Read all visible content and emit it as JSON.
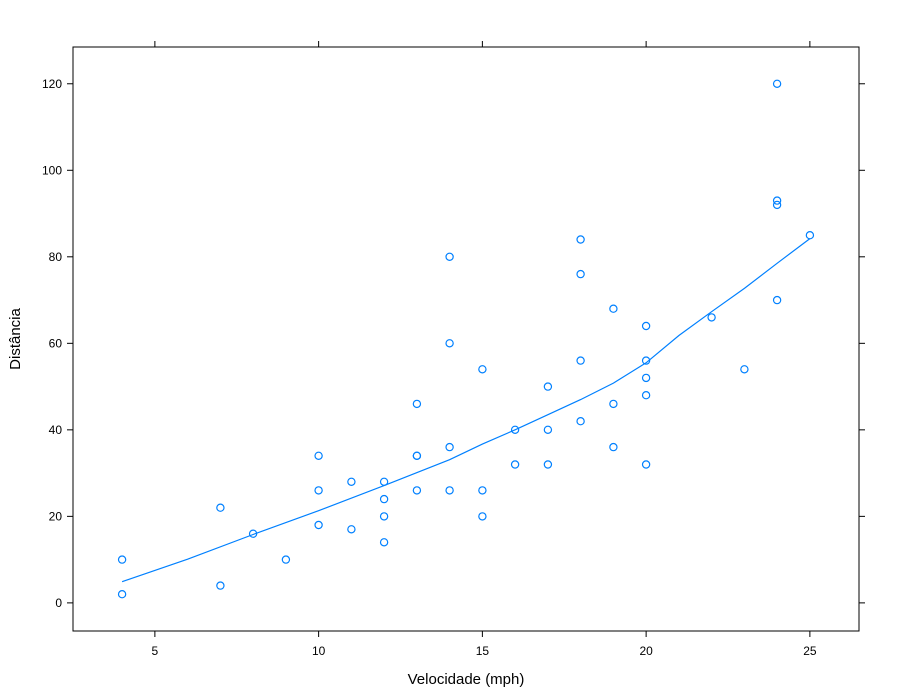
{
  "chart_data": {
    "type": "scatter",
    "title": "",
    "xlabel": "Velocidade (mph)",
    "ylabel": "Distância",
    "xlim": [
      2.5,
      26.5
    ],
    "ylim": [
      -6.5,
      128.5
    ],
    "x_ticks": [
      5,
      10,
      15,
      20,
      25
    ],
    "y_ticks": [
      0,
      20,
      40,
      60,
      80,
      100,
      120
    ],
    "grid": false,
    "legend": "none",
    "colors": {
      "points": "#0080ff",
      "line": "#0080ff",
      "frame": "#000000"
    },
    "points": [
      [
        4,
        2
      ],
      [
        4,
        10
      ],
      [
        7,
        4
      ],
      [
        7,
        22
      ],
      [
        8,
        16
      ],
      [
        9,
        10
      ],
      [
        10,
        18
      ],
      [
        10,
        26
      ],
      [
        10,
        34
      ],
      [
        11,
        17
      ],
      [
        11,
        28
      ],
      [
        12,
        14
      ],
      [
        12,
        20
      ],
      [
        12,
        24
      ],
      [
        12,
        28
      ],
      [
        13,
        26
      ],
      [
        13,
        34
      ],
      [
        13,
        34
      ],
      [
        13,
        46
      ],
      [
        14,
        26
      ],
      [
        14,
        36
      ],
      [
        14,
        60
      ],
      [
        14,
        80
      ],
      [
        15,
        20
      ],
      [
        15,
        26
      ],
      [
        15,
        54
      ],
      [
        16,
        32
      ],
      [
        16,
        40
      ],
      [
        17,
        32
      ],
      [
        17,
        40
      ],
      [
        17,
        50
      ],
      [
        18,
        42
      ],
      [
        18,
        56
      ],
      [
        18,
        76
      ],
      [
        18,
        84
      ],
      [
        19,
        36
      ],
      [
        19,
        46
      ],
      [
        19,
        68
      ],
      [
        20,
        32
      ],
      [
        20,
        48
      ],
      [
        20,
        52
      ],
      [
        20,
        56
      ],
      [
        20,
        64
      ],
      [
        22,
        66
      ],
      [
        23,
        54
      ],
      [
        24,
        70
      ],
      [
        24,
        92
      ],
      [
        24,
        93
      ],
      [
        24,
        120
      ],
      [
        25,
        85
      ]
    ],
    "smooth_line": [
      [
        4,
        4.9
      ],
      [
        6,
        10.1
      ],
      [
        8,
        15.8
      ],
      [
        10,
        21.3
      ],
      [
        12,
        27.1
      ],
      [
        14,
        33.1
      ],
      [
        15,
        36.7
      ],
      [
        16,
        40.0
      ],
      [
        17,
        43.5
      ],
      [
        18,
        47.0
      ],
      [
        19,
        50.8
      ],
      [
        20,
        55.5
      ],
      [
        21,
        61.8
      ],
      [
        22,
        67.3
      ],
      [
        23,
        72.7
      ],
      [
        24,
        78.5
      ],
      [
        25,
        84.2
      ]
    ]
  }
}
